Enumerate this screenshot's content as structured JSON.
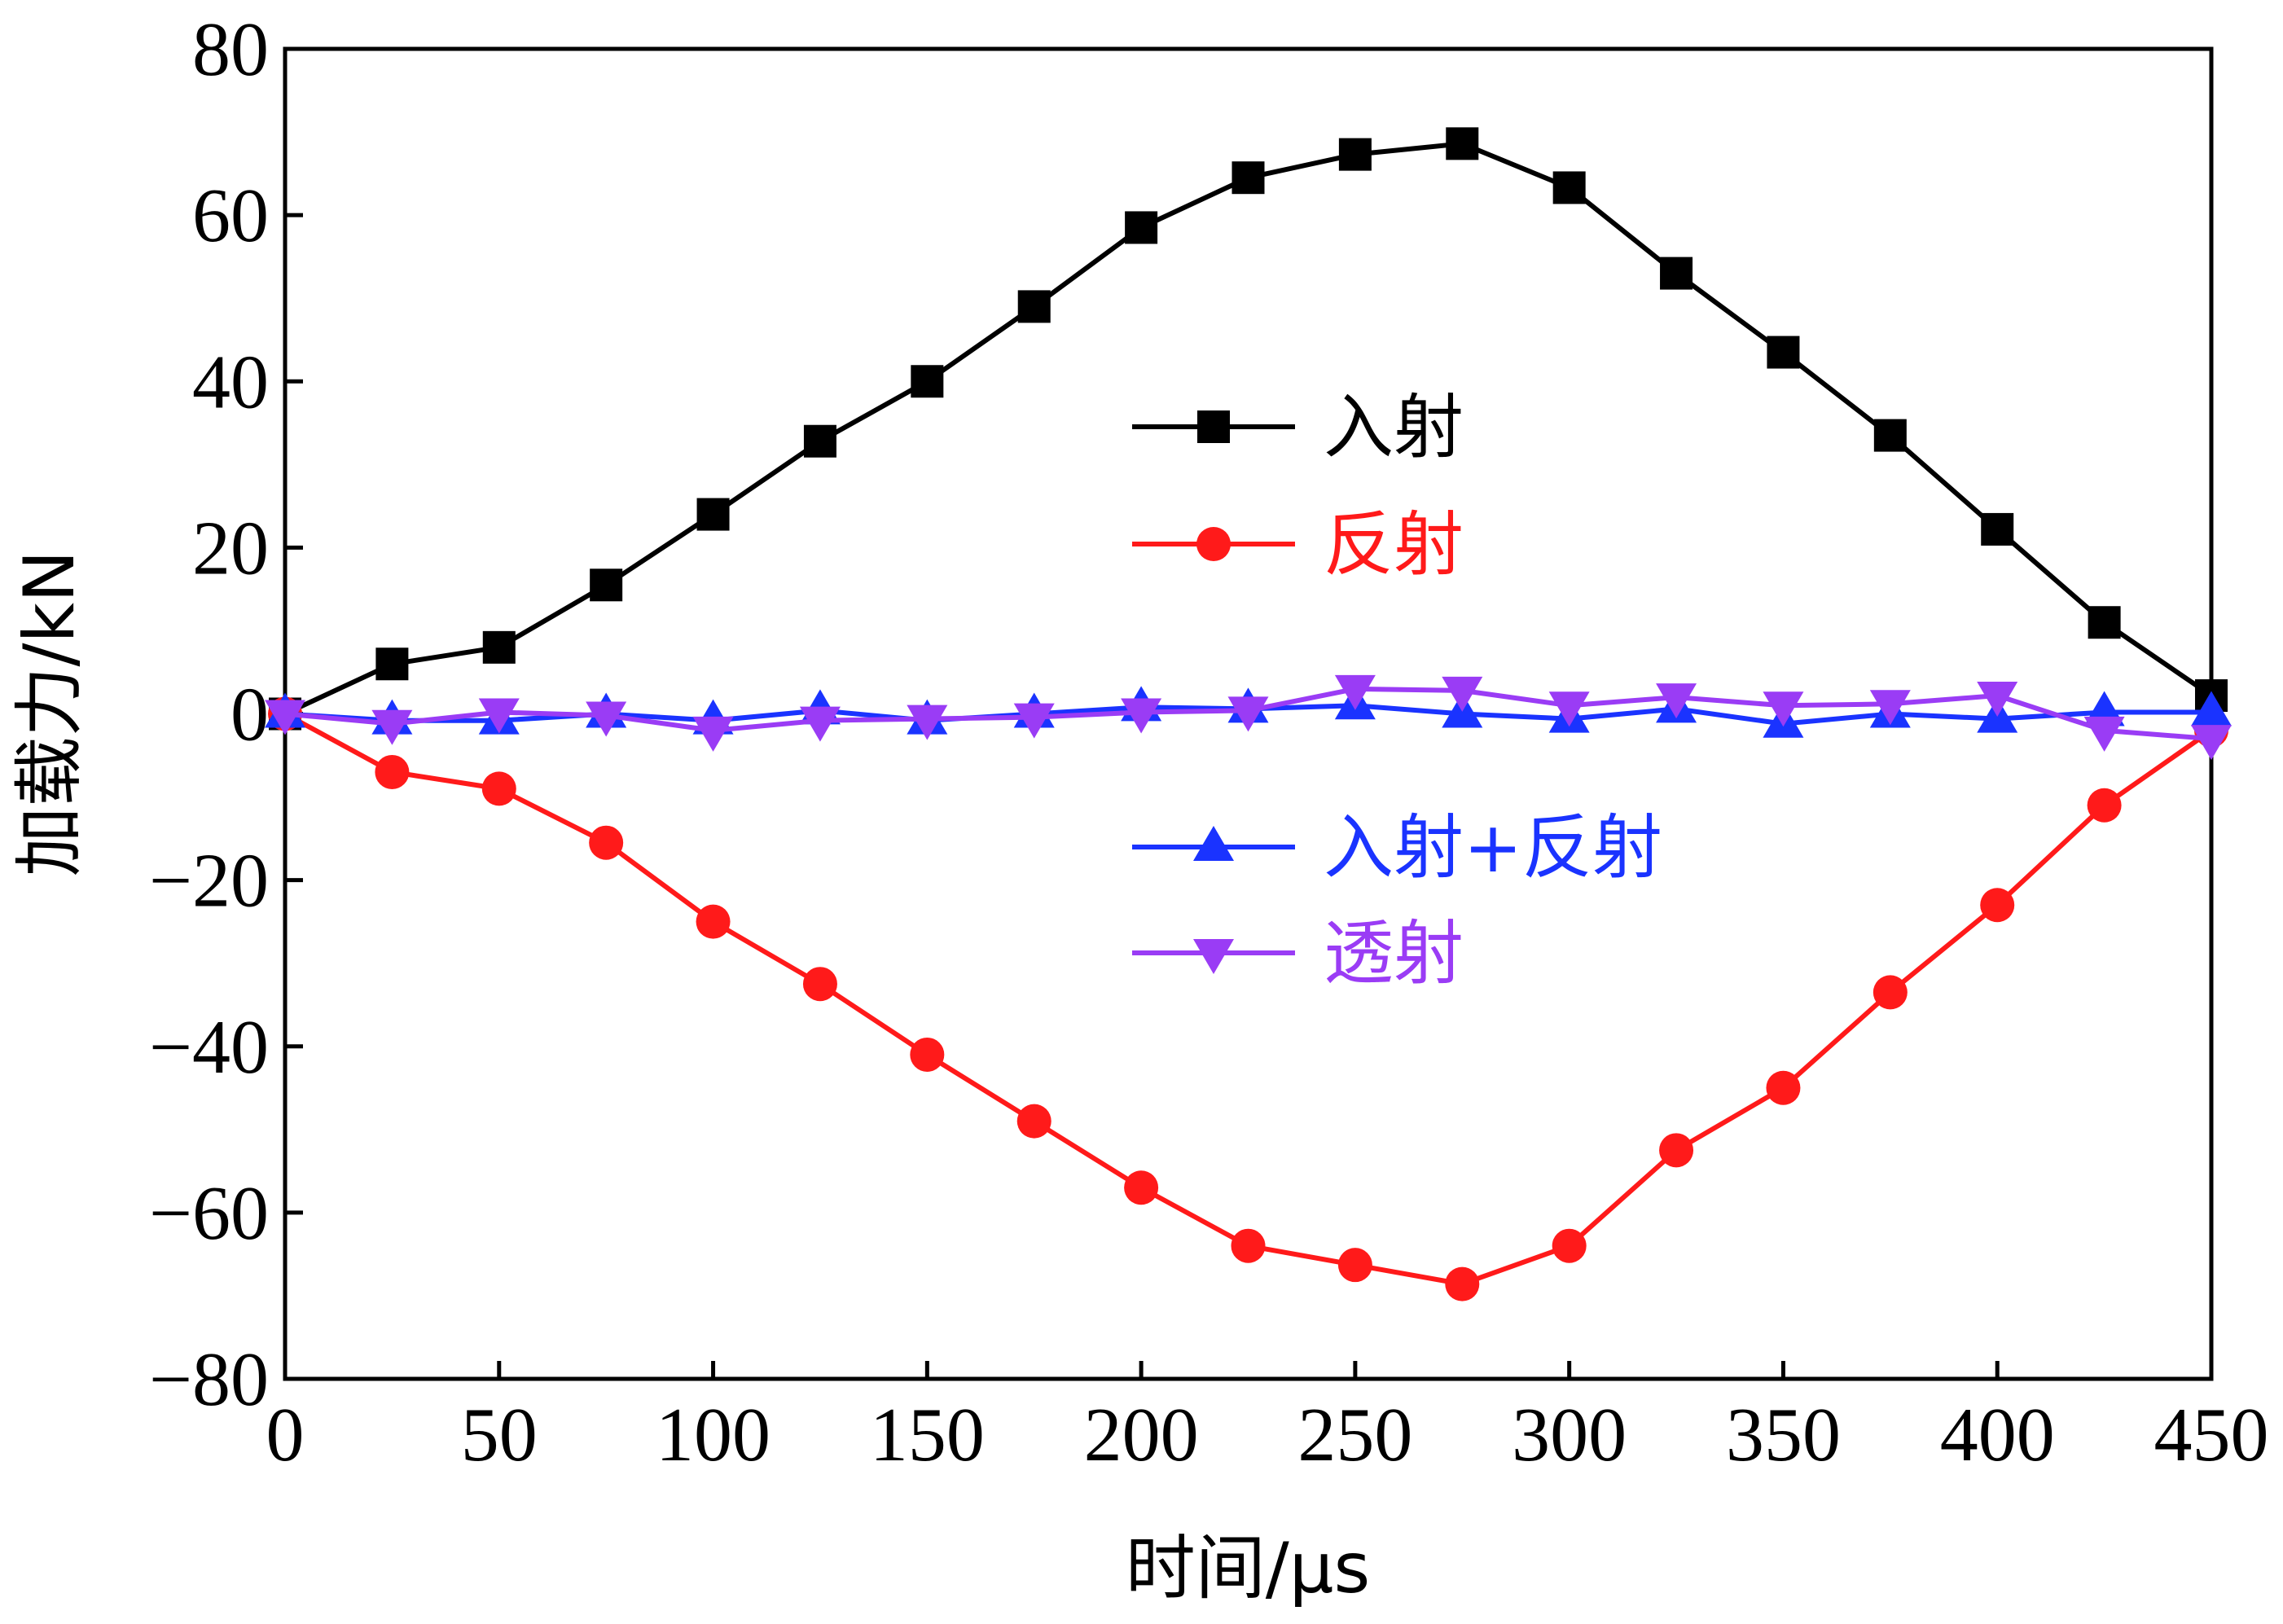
{
  "chart_data": {
    "type": "line",
    "xlabel": "时间/μs",
    "ylabel": "加载力/kN",
    "xlim": [
      0,
      450
    ],
    "ylim": [
      -80,
      80
    ],
    "xticks": [
      0,
      50,
      100,
      150,
      200,
      250,
      300,
      350,
      400,
      450
    ],
    "yticks": [
      80,
      60,
      40,
      20,
      0,
      -20,
      -40,
      -60,
      -80
    ],
    "grid": false,
    "x": [
      0,
      25,
      50,
      75,
      100,
      125,
      150,
      175,
      200,
      225,
      250,
      275,
      300,
      325,
      350,
      375,
      400,
      425,
      450
    ],
    "series": [
      {
        "name": "入射",
        "color": "#000000",
        "marker": "square",
        "values": [
          0,
          6,
          8,
          15.5,
          24,
          32.8,
          40,
          49,
          58.5,
          64.5,
          67.3,
          68.6,
          63.3,
          53,
          43.5,
          33.5,
          22.2,
          11,
          2.2
        ]
      },
      {
        "name": "反射",
        "color": "#ff1a1a",
        "marker": "circle",
        "values": [
          0,
          -7,
          -9,
          -15.5,
          -25,
          -32.5,
          -41,
          -49,
          -57,
          -64,
          -66.3,
          -68.6,
          -64,
          -52.5,
          -45,
          -33.5,
          -23,
          -11,
          -2
        ]
      },
      {
        "name": "入射+反射",
        "color": "#1a33ff",
        "marker": "triangle-up",
        "values": [
          0,
          -0.8,
          -0.8,
          0,
          -0.8,
          0.4,
          -0.8,
          0,
          0.8,
          0.6,
          1,
          0,
          -0.6,
          0.6,
          -1.2,
          0,
          -0.6,
          0.2,
          0.2
        ]
      },
      {
        "name": "透射",
        "color": "#9a3cf5",
        "marker": "triangle-down",
        "values": [
          0,
          -1.2,
          0.2,
          -0.2,
          -2,
          -0.8,
          -0.6,
          -0.4,
          0.2,
          0.4,
          3,
          2.8,
          1,
          2,
          1,
          1.2,
          2.2,
          -2,
          -3
        ]
      }
    ]
  }
}
